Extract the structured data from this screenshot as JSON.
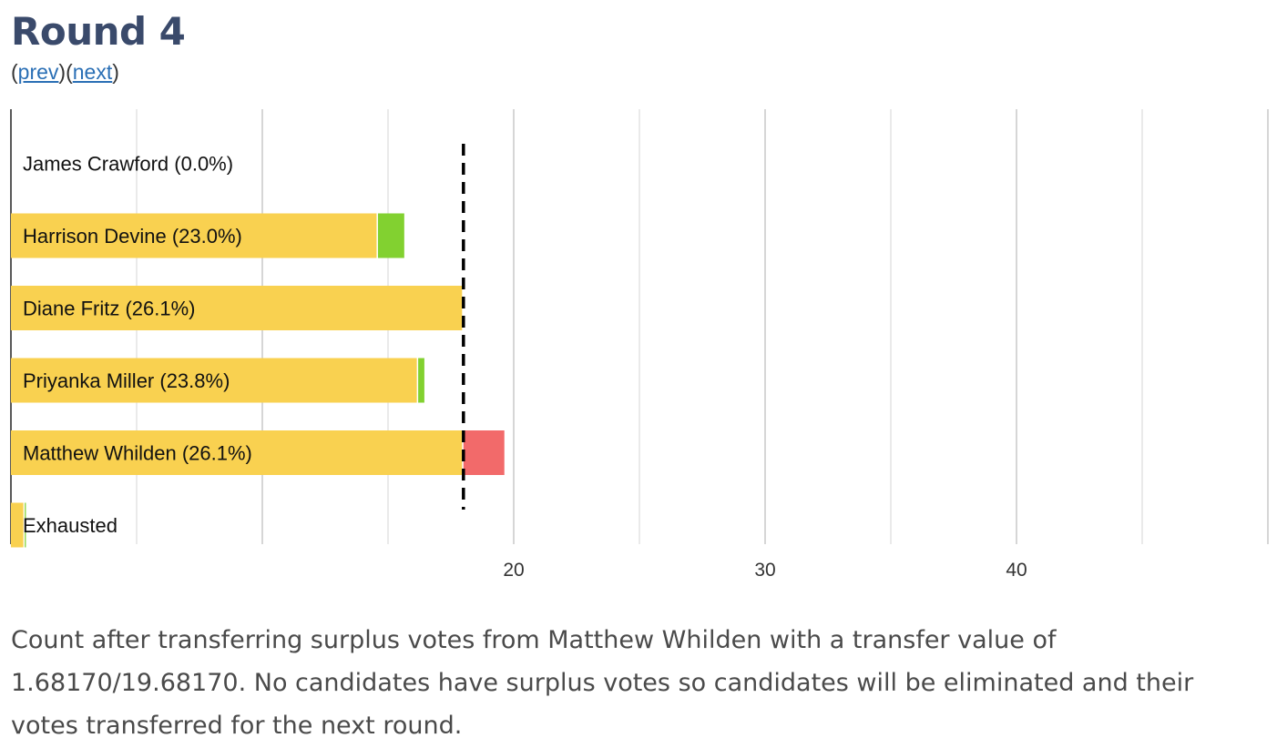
{
  "header": {
    "title": "Round 4",
    "prev_label": "prev",
    "next_label": "next"
  },
  "chart_data": {
    "type": "bar",
    "orientation": "horizontal",
    "stacked": true,
    "categories": [
      "James Crawford (0.0%)",
      "Harrison Devine (23.0%)",
      "Diane Fritz (26.1%)",
      "Priyanka Miller (23.8%)",
      "Matthew Whilden (26.1%)",
      "Exhausted"
    ],
    "series": [
      {
        "color": "#f9d150",
        "values": [
          0,
          14.6,
          18.0,
          16.2,
          18.0,
          0.55
        ]
      },
      {
        "color": "#82d130",
        "values": [
          0,
          1.1,
          0,
          0.3,
          0,
          0.1
        ]
      },
      {
        "color": "#f26a6a",
        "values": [
          0,
          0,
          0,
          0,
          1.6817,
          0
        ]
      }
    ],
    "threshold": 18.0,
    "xlim": [
      0,
      50
    ],
    "xticks": [
      20,
      30,
      40
    ],
    "grid": true
  },
  "caption": "Count after transferring surplus votes from Matthew Whilden with a transfer value of 1.68170/19.68170. No candidates have surplus votes so candidates will be eliminated and their votes transferred for the next round."
}
